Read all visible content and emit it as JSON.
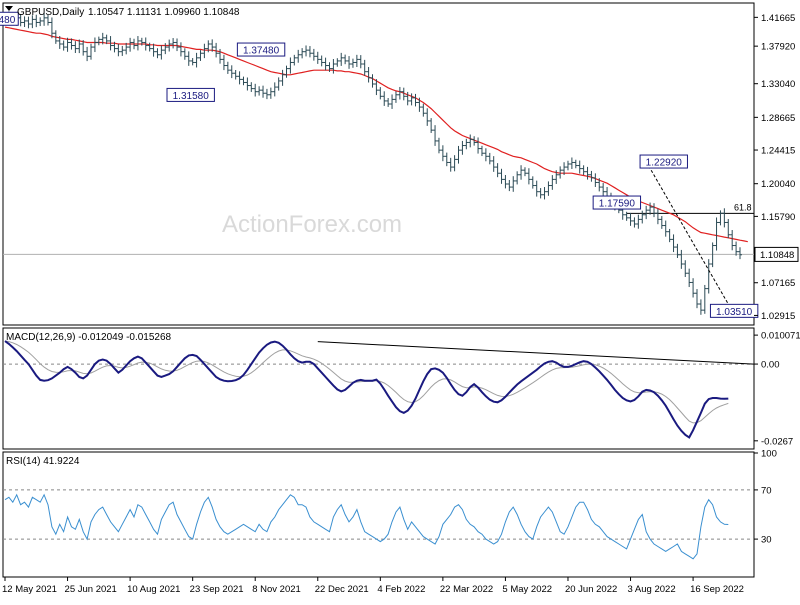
{
  "chart_data": [
    {
      "type": "candlestick",
      "symbol_header": "GBPUSD,Daily",
      "ohlc_header": "1.10547 1.11131 1.09960 1.10848",
      "watermark": "ActionForex.com",
      "y_ticks": [
        "1.41665",
        "1.37920",
        "1.33040",
        "1.28665",
        "1.24415",
        "1.20040",
        "1.15790",
        "1.07165",
        "1.02915"
      ],
      "current_price": "1.10848",
      "fib_label": "61.8",
      "fib_level": 1.1618,
      "ylim": [
        1.018,
        1.434
      ],
      "annotations": [
        {
          "text": "480",
          "x": 0.5,
          "y": 1.4148
        },
        {
          "text": "1.37480",
          "x": 65.5,
          "y": 1.3748
        },
        {
          "text": "1.31580",
          "x": 47.5,
          "y": 1.3158
        },
        {
          "text": "1.22920",
          "x": 168.5,
          "y": 1.2292
        },
        {
          "text": "1.17590",
          "x": 156.5,
          "y": 1.1759
        },
        {
          "text": "1.03510",
          "x": 186.5,
          "y": 1.0351
        }
      ],
      "x_labels": [
        "12 May 2021",
        "25 Jun 2021",
        "10 Aug 2021",
        "23 Sep 2021",
        "8 Nov 2021",
        "22 Dec 2021",
        "4 Feb 2022",
        "22 Mar 2022",
        "5 May 2022",
        "20 Jun 2022",
        "3 Aug 2022",
        "16 Sep 2022"
      ],
      "x_label_index": [
        0,
        16,
        32,
        48,
        64,
        80,
        96,
        112,
        128,
        144,
        160,
        176
      ],
      "close": [
        1.414,
        1.418,
        1.412,
        1.416,
        1.41,
        1.412,
        1.408,
        1.414,
        1.41,
        1.412,
        1.416,
        1.41,
        1.396,
        1.386,
        1.382,
        1.378,
        1.384,
        1.38,
        1.376,
        1.382,
        1.372,
        1.366,
        1.378,
        1.384,
        1.388,
        1.39,
        1.386,
        1.38,
        1.376,
        1.372,
        1.374,
        1.378,
        1.384,
        1.38,
        1.386,
        1.384,
        1.38,
        1.376,
        1.372,
        1.368,
        1.374,
        1.378,
        1.382,
        1.384,
        1.378,
        1.372,
        1.366,
        1.36,
        1.358,
        1.364,
        1.37,
        1.376,
        1.382,
        1.378,
        1.37,
        1.362,
        1.354,
        1.348,
        1.344,
        1.34,
        1.336,
        1.332,
        1.328,
        1.324,
        1.32,
        1.322,
        1.318,
        1.316,
        1.32,
        1.326,
        1.334,
        1.342,
        1.35,
        1.358,
        1.364,
        1.368,
        1.372,
        1.374,
        1.37,
        1.366,
        1.362,
        1.358,
        1.354,
        1.35,
        1.356,
        1.36,
        1.364,
        1.36,
        1.356,
        1.358,
        1.362,
        1.356,
        1.346,
        1.338,
        1.33,
        1.322,
        1.314,
        1.308,
        1.304,
        1.31,
        1.316,
        1.32,
        1.314,
        1.308,
        1.312,
        1.306,
        1.3,
        1.292,
        1.282,
        1.27,
        1.256,
        1.244,
        1.236,
        1.228,
        1.222,
        1.232,
        1.244,
        1.25,
        1.254,
        1.258,
        1.254,
        1.246,
        1.24,
        1.236,
        1.23,
        1.222,
        1.214,
        1.206,
        1.2,
        1.196,
        1.204,
        1.212,
        1.218,
        1.214,
        1.206,
        1.198,
        1.19,
        1.186,
        1.19,
        1.198,
        1.206,
        1.212,
        1.218,
        1.222,
        1.226,
        1.228,
        1.224,
        1.22,
        1.216,
        1.212,
        1.208,
        1.202,
        1.196,
        1.19,
        1.184,
        1.178,
        1.172,
        1.166,
        1.16,
        1.156,
        1.152,
        1.148,
        1.154,
        1.16,
        1.166,
        1.17,
        1.162,
        1.154,
        1.146,
        1.138,
        1.128,
        1.118,
        1.108,
        1.096,
        1.084,
        1.072,
        1.058,
        1.044,
        1.036,
        1.064,
        1.096,
        1.12,
        1.15,
        1.162,
        1.15,
        1.134,
        1.12,
        1.112,
        1.108
      ],
      "ma": [
        1.404,
        1.403,
        1.402,
        1.401,
        1.4,
        1.399,
        1.398,
        1.397,
        1.396,
        1.396,
        1.395,
        1.394,
        1.392,
        1.391,
        1.39,
        1.389,
        1.388,
        1.388,
        1.387,
        1.386,
        1.385,
        1.384,
        1.384,
        1.384,
        1.384,
        1.384,
        1.383,
        1.383,
        1.383,
        1.382,
        1.382,
        1.382,
        1.382,
        1.382,
        1.382,
        1.382,
        1.382,
        1.381,
        1.381,
        1.38,
        1.38,
        1.38,
        1.38,
        1.38,
        1.38,
        1.379,
        1.378,
        1.377,
        1.376,
        1.375,
        1.375,
        1.374,
        1.374,
        1.374,
        1.373,
        1.372,
        1.37,
        1.368,
        1.366,
        1.364,
        1.362,
        1.36,
        1.358,
        1.356,
        1.354,
        1.352,
        1.35,
        1.348,
        1.346,
        1.345,
        1.344,
        1.343,
        1.342,
        1.342,
        1.343,
        1.344,
        1.345,
        1.346,
        1.347,
        1.348,
        1.348,
        1.348,
        1.348,
        1.348,
        1.348,
        1.347,
        1.347,
        1.346,
        1.346,
        1.345,
        1.344,
        1.343,
        1.341,
        1.339,
        1.337,
        1.334,
        1.331,
        1.328,
        1.325,
        1.323,
        1.321,
        1.32,
        1.318,
        1.316,
        1.314,
        1.312,
        1.309,
        1.306,
        1.302,
        1.298,
        1.293,
        1.288,
        1.283,
        1.278,
        1.273,
        1.269,
        1.266,
        1.263,
        1.261,
        1.259,
        1.257,
        1.255,
        1.253,
        1.251,
        1.249,
        1.247,
        1.245,
        1.242,
        1.24,
        1.238,
        1.236,
        1.235,
        1.234,
        1.232,
        1.23,
        1.228,
        1.226,
        1.223,
        1.22,
        1.218,
        1.216,
        1.215,
        1.214,
        1.214,
        1.214,
        1.214,
        1.213,
        1.212,
        1.211,
        1.21,
        1.209,
        1.207,
        1.205,
        1.203,
        1.201,
        1.198,
        1.195,
        1.192,
        1.189,
        1.186,
        1.183,
        1.18,
        1.178,
        1.176,
        1.174,
        1.172,
        1.17,
        1.168,
        1.166,
        1.164,
        1.162,
        1.16,
        1.157,
        1.154,
        1.151,
        1.147,
        1.143,
        1.14,
        1.137,
        1.136,
        1.135,
        1.134,
        1.133,
        1.132,
        1.131,
        1.13,
        1.129,
        1.128,
        1.127,
        1.126,
        1.125
      ],
      "ma_color": "#e02020",
      "bar_color": "#2b4a55",
      "dashed_line": {
        "from_index": 164,
        "from_value": 1.2292,
        "to_index": 186,
        "to_value": 1.0351
      }
    },
    {
      "type": "line",
      "header": "MACD(12,26,9) -0.012049 -0.015268",
      "y_ticks": [
        "0.010071",
        "0.00",
        "-0.0267"
      ],
      "ylim": [
        -0.0292,
        0.0122
      ],
      "macd": [
        0.008,
        0.007,
        0.0058,
        0.0045,
        0.003,
        0.0015,
        0.0,
        -0.002,
        -0.004,
        -0.0055,
        -0.0058,
        -0.0056,
        -0.005,
        -0.004,
        -0.003,
        -0.0018,
        -0.001,
        -0.0018,
        -0.003,
        -0.0045,
        -0.005,
        -0.004,
        -0.002,
        0.0,
        0.0012,
        0.0016,
        0.0012,
        0.0,
        -0.0015,
        -0.003,
        -0.002,
        -0.0005,
        0.001,
        0.002,
        0.0026,
        0.002,
        0.0005,
        -0.001,
        -0.0025,
        -0.004,
        -0.0045,
        -0.004,
        -0.0035,
        -0.0025,
        -0.001,
        0.0005,
        0.002,
        0.003,
        0.0032,
        0.0028,
        0.0015,
        0.0,
        -0.0015,
        -0.003,
        -0.0045,
        -0.0053,
        -0.0058,
        -0.006,
        -0.0059,
        -0.0056,
        -0.005,
        -0.0038,
        -0.002,
        0.0,
        0.002,
        0.004,
        0.0055,
        0.0067,
        0.0075,
        0.0078,
        0.0074,
        0.0064,
        0.005,
        0.0034,
        0.002,
        0.001,
        0.0005,
        0.0008,
        0.0008,
        0.0,
        -0.0015,
        -0.003,
        -0.0045,
        -0.006,
        -0.0075,
        -0.0088,
        -0.0095,
        -0.009,
        -0.0078,
        -0.0065,
        -0.0058,
        -0.0055,
        -0.0058,
        -0.0058,
        -0.0058,
        -0.0054,
        -0.0068,
        -0.0088,
        -0.011,
        -0.013,
        -0.015,
        -0.0164,
        -0.017,
        -0.0162,
        -0.0145,
        -0.012,
        -0.009,
        -0.006,
        -0.0035,
        -0.0018,
        -0.0015,
        -0.002,
        -0.003,
        -0.0048,
        -0.007,
        -0.009,
        -0.0105,
        -0.011,
        -0.0098,
        -0.008,
        -0.007,
        -0.0082,
        -0.0098,
        -0.0112,
        -0.0124,
        -0.0131,
        -0.0133,
        -0.0126,
        -0.0114,
        -0.0099,
        -0.0085,
        -0.0071,
        -0.006,
        -0.005,
        -0.004,
        -0.003,
        -0.002,
        -0.0008,
        0.0002,
        0.0008,
        0.001,
        0.0005,
        -0.0004,
        -0.001,
        -0.001,
        -0.0006,
        0.0,
        0.0006,
        0.001,
        0.0008,
        0.0,
        -0.0012,
        -0.0025,
        -0.004,
        -0.0055,
        -0.0072,
        -0.009,
        -0.0105,
        -0.0118,
        -0.0126,
        -0.013,
        -0.0125,
        -0.0112,
        -0.0096,
        -0.009,
        -0.0092,
        -0.0098,
        -0.011,
        -0.0126,
        -0.0145,
        -0.0168,
        -0.0192,
        -0.0214,
        -0.0232,
        -0.0246,
        -0.0255,
        -0.023,
        -0.02,
        -0.017,
        -0.0138,
        -0.0122,
        -0.0118,
        -0.0118,
        -0.012,
        -0.0121,
        -0.012
      ],
      "macd_color": "#1a1a80",
      "signal_color": "#a0a0a0"
    },
    {
      "type": "line",
      "header": "RSI(14) 41.9224",
      "y_ticks": [
        "100",
        "70",
        "30"
      ],
      "levels": [
        70,
        30
      ],
      "ylim": [
        0,
        100
      ],
      "rsi": [
        62,
        64,
        60,
        66,
        58,
        60,
        56,
        64,
        62,
        60,
        66,
        58,
        40,
        34,
        42,
        36,
        48,
        40,
        38,
        46,
        36,
        30,
        44,
        50,
        54,
        56,
        50,
        44,
        40,
        36,
        42,
        48,
        54,
        48,
        58,
        56,
        50,
        44,
        38,
        34,
        46,
        52,
        58,
        60,
        50,
        44,
        38,
        32,
        30,
        42,
        52,
        60,
        64,
        56,
        46,
        40,
        36,
        34,
        36,
        38,
        40,
        42,
        40,
        38,
        36,
        42,
        38,
        36,
        44,
        48,
        54,
        58,
        62,
        66,
        64,
        58,
        58,
        56,
        48,
        44,
        42,
        40,
        38,
        36,
        48,
        54,
        58,
        50,
        44,
        48,
        54,
        44,
        36,
        34,
        32,
        30,
        28,
        30,
        34,
        44,
        52,
        56,
        46,
        38,
        44,
        40,
        36,
        32,
        30,
        28,
        26,
        32,
        42,
        46,
        50,
        56,
        58,
        54,
        46,
        42,
        40,
        36,
        34,
        30,
        28,
        26,
        28,
        34,
        44,
        52,
        56,
        50,
        42,
        36,
        32,
        30,
        40,
        48,
        52,
        56,
        52,
        44,
        36,
        34,
        40,
        48,
        56,
        60,
        60,
        54,
        46,
        42,
        40,
        36,
        32,
        30,
        28,
        26,
        24,
        22,
        30,
        38,
        46,
        50,
        36,
        30,
        26,
        24,
        22,
        20,
        22,
        24,
        26,
        20,
        18,
        16,
        14,
        18,
        40,
        56,
        62,
        58,
        48,
        44,
        42,
        41.9
      ]
    }
  ]
}
